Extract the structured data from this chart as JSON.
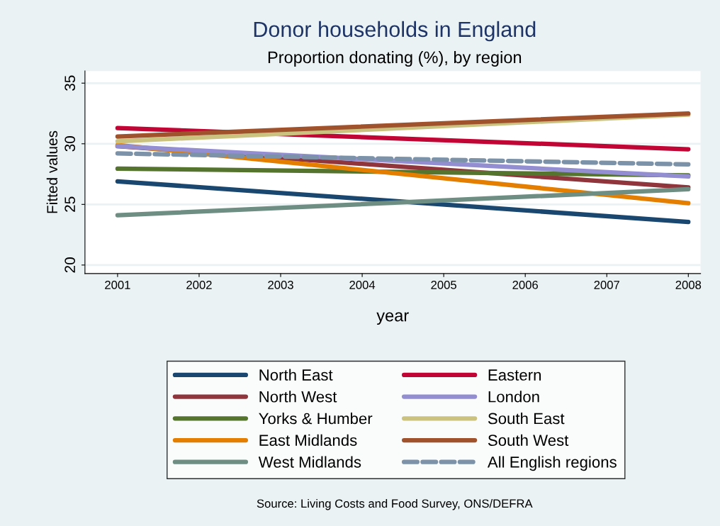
{
  "chart_data": {
    "type": "line",
    "title": "Donor households in England",
    "subtitle": "Proportion donating (%), by region",
    "xlabel": "year",
    "ylabel": "Fitted values",
    "x": [
      2001,
      2008
    ],
    "series": [
      {
        "name": "North East",
        "color": "#1a476f",
        "values": [
          26.9,
          23.55
        ]
      },
      {
        "name": "North West",
        "color": "#90353b",
        "values": [
          29.8,
          26.4
        ]
      },
      {
        "name": "Yorks & Humber",
        "color": "#55752f",
        "values": [
          27.95,
          27.4
        ]
      },
      {
        "name": "East Midlands",
        "color": "#e37e00",
        "values": [
          29.9,
          25.1
        ]
      },
      {
        "name": "West Midlands",
        "color": "#6e8e84",
        "values": [
          24.1,
          26.25
        ]
      },
      {
        "name": "Eastern",
        "color": "#c10534",
        "values": [
          31.3,
          29.55
        ]
      },
      {
        "name": "London",
        "color": "#938dd2",
        "values": [
          29.8,
          27.3
        ]
      },
      {
        "name": "South East",
        "color": "#cac27e",
        "values": [
          30.2,
          32.4
        ]
      },
      {
        "name": "South West",
        "color": "#a0522d",
        "values": [
          30.6,
          32.5
        ]
      },
      {
        "name": "All English regions",
        "color": "#7b92a8",
        "values": [
          29.2,
          28.3
        ],
        "line_style": "dashed"
      }
    ],
    "xlim": [
      2000.6,
      2008.15
    ],
    "ylim": [
      19.3,
      36
    ],
    "xticks": [
      2001,
      2002,
      2003,
      2004,
      2005,
      2006,
      2007,
      2008
    ],
    "yticks": [
      20,
      25,
      30,
      35
    ],
    "grid": "y",
    "legend": "bottom",
    "marker": "none",
    "line_style": "solid",
    "annotations": [
      "Source: Living Costs and Food Survey, ONS/DEFRA"
    ]
  }
}
